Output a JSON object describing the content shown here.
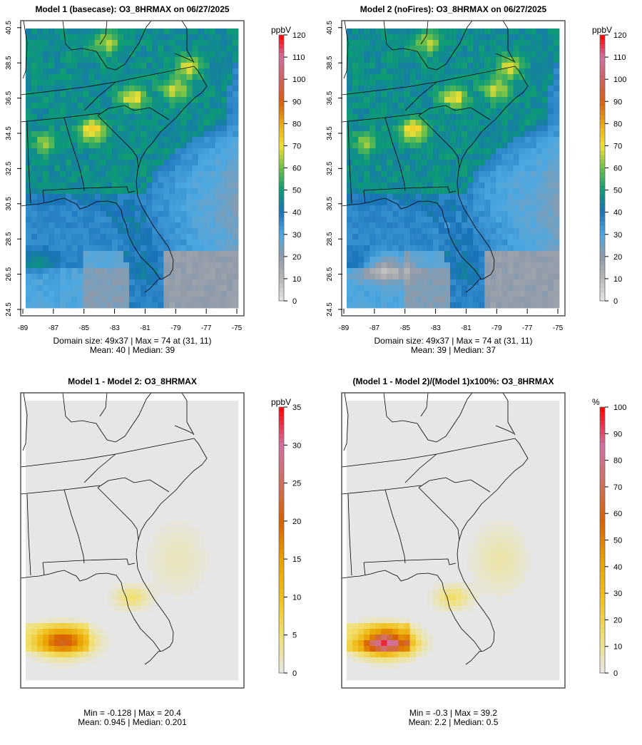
{
  "chart_data": [
    {
      "type": "heatmap",
      "id": "p1",
      "title": "Model 1 (basecase): O3_8HRMAX on 06/27/2025",
      "unit": "ppbV",
      "xlim": [
        -89,
        -75
      ],
      "ylim": [
        24.5,
        40.5
      ],
      "xticks": [
        "-89",
        "-87",
        "-85",
        "-83",
        "-81",
        "-79",
        "-77",
        "-75"
      ],
      "yticks": [
        "24.5",
        "26.5",
        "28.5",
        "30.5",
        "32.5",
        "34.5",
        "36.5",
        "38.5",
        "40.5"
      ],
      "colorbar": {
        "min": 0,
        "max": 120,
        "ticks": [
          "0",
          "10",
          "20",
          "30",
          "40",
          "50",
          "60",
          "70",
          "80",
          "90",
          "100",
          "110",
          "120"
        ]
      },
      "stats": [
        "Domain size: 49x37 | Max = 74 at (31, 11)",
        "Mean: 40 |  Median: 39"
      ],
      "grid": {
        "rows": 49,
        "cols": 37
      },
      "field": "model1"
    },
    {
      "type": "heatmap",
      "id": "p2",
      "title": "Model 2 (noFires): O3_8HRMAX on 06/27/2025",
      "unit": "ppbV",
      "xlim": [
        -89,
        -75
      ],
      "ylim": [
        24.5,
        40.5
      ],
      "xticks": [
        "-89",
        "-87",
        "-85",
        "-83",
        "-81",
        "-79",
        "-77",
        "-75"
      ],
      "yticks": [
        "24.5",
        "26.5",
        "28.5",
        "30.5",
        "32.5",
        "34.5",
        "36.5",
        "38.5",
        "40.5"
      ],
      "colorbar": {
        "min": 0,
        "max": 120,
        "ticks": [
          "0",
          "10",
          "20",
          "30",
          "40",
          "50",
          "60",
          "70",
          "80",
          "90",
          "100",
          "110",
          "120"
        ]
      },
      "stats": [
        "Domain size: 49x37 | Max = 74 at (31, 11)",
        "Mean: 39 |  Median: 37"
      ],
      "grid": {
        "rows": 49,
        "cols": 37
      },
      "field": "model2"
    },
    {
      "type": "heatmap",
      "id": "p3",
      "title": "Model 1 - Model 2: O3_8HRMAX",
      "unit": "ppbV",
      "colorbar": {
        "min": 0,
        "max": 35,
        "ticks": [
          "0",
          "5",
          "10",
          "15",
          "20",
          "25",
          "30",
          "35"
        ]
      },
      "stats": [
        "Min = -0.128 | Max = 20.4",
        "Mean: 0.945 |  Median: 0.201"
      ],
      "grid": {
        "rows": 49,
        "cols": 37
      },
      "field": "diff"
    },
    {
      "type": "heatmap",
      "id": "p4",
      "title": "(Model 1 - Model 2)/(Model 1)x100%: O3_8HRMAX",
      "unit": "%",
      "colorbar": {
        "min": 0,
        "max": 100,
        "ticks": [
          "0",
          "10",
          "20",
          "30",
          "40",
          "50",
          "60",
          "70",
          "80",
          "90",
          "100"
        ]
      },
      "stats": [
        "Min = -0.3 | Max = 39.2",
        "Mean: 2.2 |  Median: 0.5"
      ],
      "grid": {
        "rows": 49,
        "cols": 37
      },
      "field": "pct"
    }
  ],
  "colors": {
    "ozone": [
      "#e6e6e6",
      "#b8b8b8",
      "#8f9aa8",
      "#4ea8e0",
      "#1a72b8",
      "#0d9a78",
      "#6cbf4a",
      "#f2e035",
      "#e8a818",
      "#d86010",
      "#d06060",
      "#d070a0",
      "#ff0000"
    ],
    "diff": [
      "#e6e6e6",
      "#f0e070",
      "#f0c020",
      "#e8a000",
      "#d86000",
      "#d07060",
      "#d070a0",
      "#ff0000"
    ]
  },
  "hotspots": {
    "model1": [
      [
        -84.5,
        34.7,
        28
      ],
      [
        -81.9,
        36.6,
        24
      ],
      [
        -79.2,
        37.0,
        20
      ],
      [
        -78.3,
        38.3,
        22
      ],
      [
        -83.6,
        39.7,
        18
      ],
      [
        -87.5,
        34.0,
        14
      ]
    ],
    "diff": [
      [
        -86.4,
        26.8,
        19
      ],
      [
        -82.0,
        29.3,
        5
      ],
      [
        -79.0,
        31.5,
        1.8
      ]
    ]
  }
}
